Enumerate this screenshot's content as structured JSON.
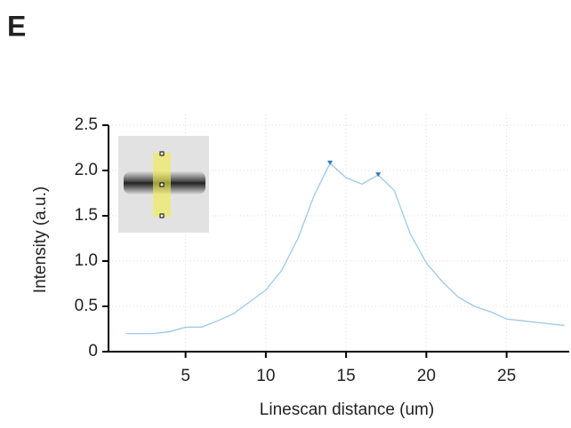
{
  "panel_label": "E",
  "chart_data": {
    "type": "line",
    "xlabel": "Linescan distance (um)",
    "ylabel": "Intensity (a.u.)",
    "x": [
      1.3,
      3,
      4,
      5,
      6,
      7,
      8,
      9,
      10,
      11,
      12,
      13,
      14,
      15,
      16,
      17,
      18,
      19,
      20,
      21,
      22,
      23,
      24,
      25,
      26,
      27,
      28,
      28.6
    ],
    "series": [
      {
        "color": "#9cc8ea",
        "values": [
          0.2,
          0.2,
          0.22,
          0.27,
          0.27,
          0.34,
          0.42,
          0.55,
          0.68,
          0.9,
          1.25,
          1.72,
          2.08,
          1.92,
          1.85,
          1.95,
          1.78,
          1.3,
          0.98,
          0.77,
          0.6,
          0.5,
          0.44,
          0.36,
          0.34,
          0.32,
          0.3,
          0.29
        ]
      }
    ],
    "peak_markers": {
      "color": "#2f78c0",
      "x": [
        14,
        17
      ],
      "values": [
        2.08,
        1.95
      ]
    },
    "xlim": [
      0.2,
      28.9
    ],
    "ylim": [
      0,
      2.5
    ],
    "xticks": [
      5,
      10,
      15,
      20,
      25
    ],
    "yticks": [
      0,
      0.5,
      {
        "value": 1,
        "label": "1.0"
      },
      1.5,
      {
        "value": 2,
        "label": "2.0"
      },
      2.5
    ],
    "grid": true
  }
}
